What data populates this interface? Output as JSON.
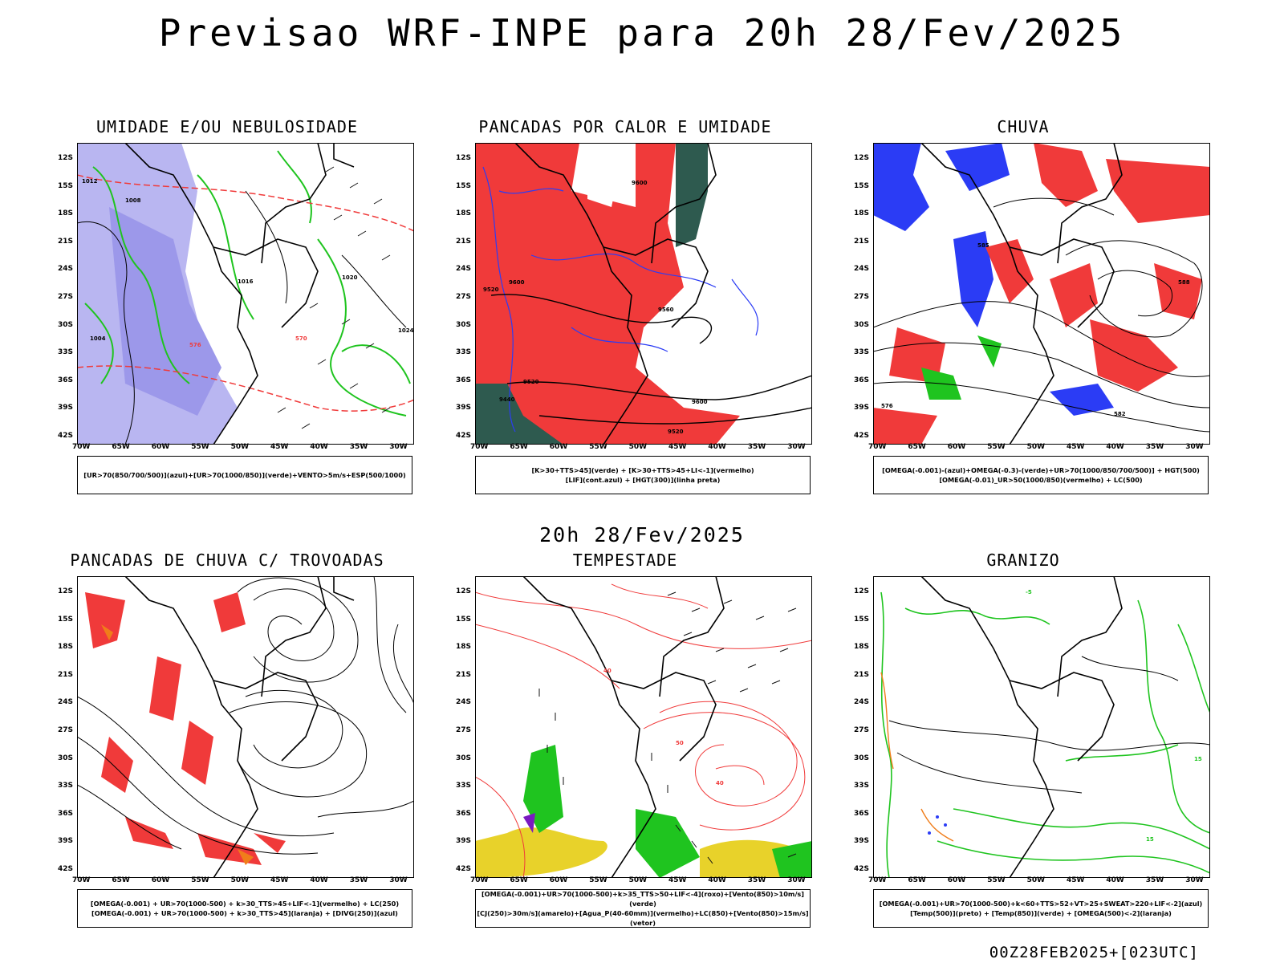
{
  "title": "Previsao WRF-INPE  para 20h 28/Fev/2025",
  "subtitle": "20h 28/Fev/2025",
  "footer": "00Z28FEB2025+[023UTC]",
  "axes": {
    "lat": [
      "12S",
      "15S",
      "18S",
      "21S",
      "24S",
      "27S",
      "30S",
      "33S",
      "36S",
      "39S",
      "42S"
    ],
    "lon": [
      "70W",
      "65W",
      "60W",
      "55W",
      "50W",
      "45W",
      "40W",
      "35W",
      "30W"
    ]
  },
  "panels": [
    {
      "id": "umidade",
      "title": "UMIDADE E/OU NEBULOSIDADE",
      "caption": [
        "[UR>70(850/700/500)](azul)+[UR>70(1000/850)](verde)+VENTO>5m/s+ESP(500/1000)"
      ],
      "labels": [
        "1008",
        "1012",
        "1016",
        "1020",
        "1024",
        "570",
        "576",
        "1004"
      ]
    },
    {
      "id": "pancadas-calor",
      "title": "PANCADAS POR CALOR E UMIDADE",
      "caption": [
        "[K>30+TTS>45](verde) + [K>30+TTS>45+LI<-1](vermelho)",
        "[LIF](cont.azul) + [HGT(300)](linha preta)"
      ],
      "labels": [
        "9600",
        "9520",
        "9440",
        "9560"
      ]
    },
    {
      "id": "chuva",
      "title": "CHUVA",
      "caption": [
        "[OMEGA(-0.001)-(azul)+OMEGA(-0.3)-(verde)+UR>70(1000/850/700/500)] + HGT(500)",
        "[OMEGA(-0.01)_UR>50(1000/850)(vermelho) + LC(500)"
      ],
      "labels": [
        "588",
        "585",
        "576",
        "582"
      ]
    },
    {
      "id": "trovoadas",
      "title": "PANCADAS DE CHUVA C/ TROVOADAS",
      "caption": [
        "[OMEGA(-0.001) + UR>70(1000-500) + k>30_TTS>45+LIF<-1](vermelho) + LC(250)",
        "[OMEGA(-0.001) + UR>70(1000-500) + k>30_TTS>45](laranja) + [DIVG(250)](azul)"
      ],
      "labels": []
    },
    {
      "id": "tempestade",
      "title": "TEMPESTADE",
      "caption": [
        "[OMEGA(-0.001)+UR>70(1000-500)+k>35_TTS>50+LIF<-4](roxo)+[Vento(850)>10m/s](verde)",
        "[CJ(250)>30m/s](amarelo)+[Agua_P(40-60mm)](vermelho)+LC(850)+[Vento(850)>15m/s](vetor)"
      ],
      "labels": [
        "40",
        "50"
      ]
    },
    {
      "id": "granizo",
      "title": "GRANIZO",
      "caption": [
        "[OMEGA(-0.001)+UR>70(1000-500)+k<60+TTS>52+VT>25+SWEAT>220+LIF<-2](azul)",
        "[Temp(500)](preto) + [Temp(850)](verde) + [OMEGA(500)<-2](laranja)"
      ],
      "labels": [
        "-5",
        "15"
      ]
    }
  ],
  "colors": {
    "red": "#f03a3a",
    "green": "#1fc41f",
    "blue": "#2b3cf5",
    "lavender": "#a9a6ef",
    "teal": "#2e5a4f",
    "yellow": "#e8d22a",
    "orange": "#f07d1a",
    "purple": "#7a1ac0"
  }
}
